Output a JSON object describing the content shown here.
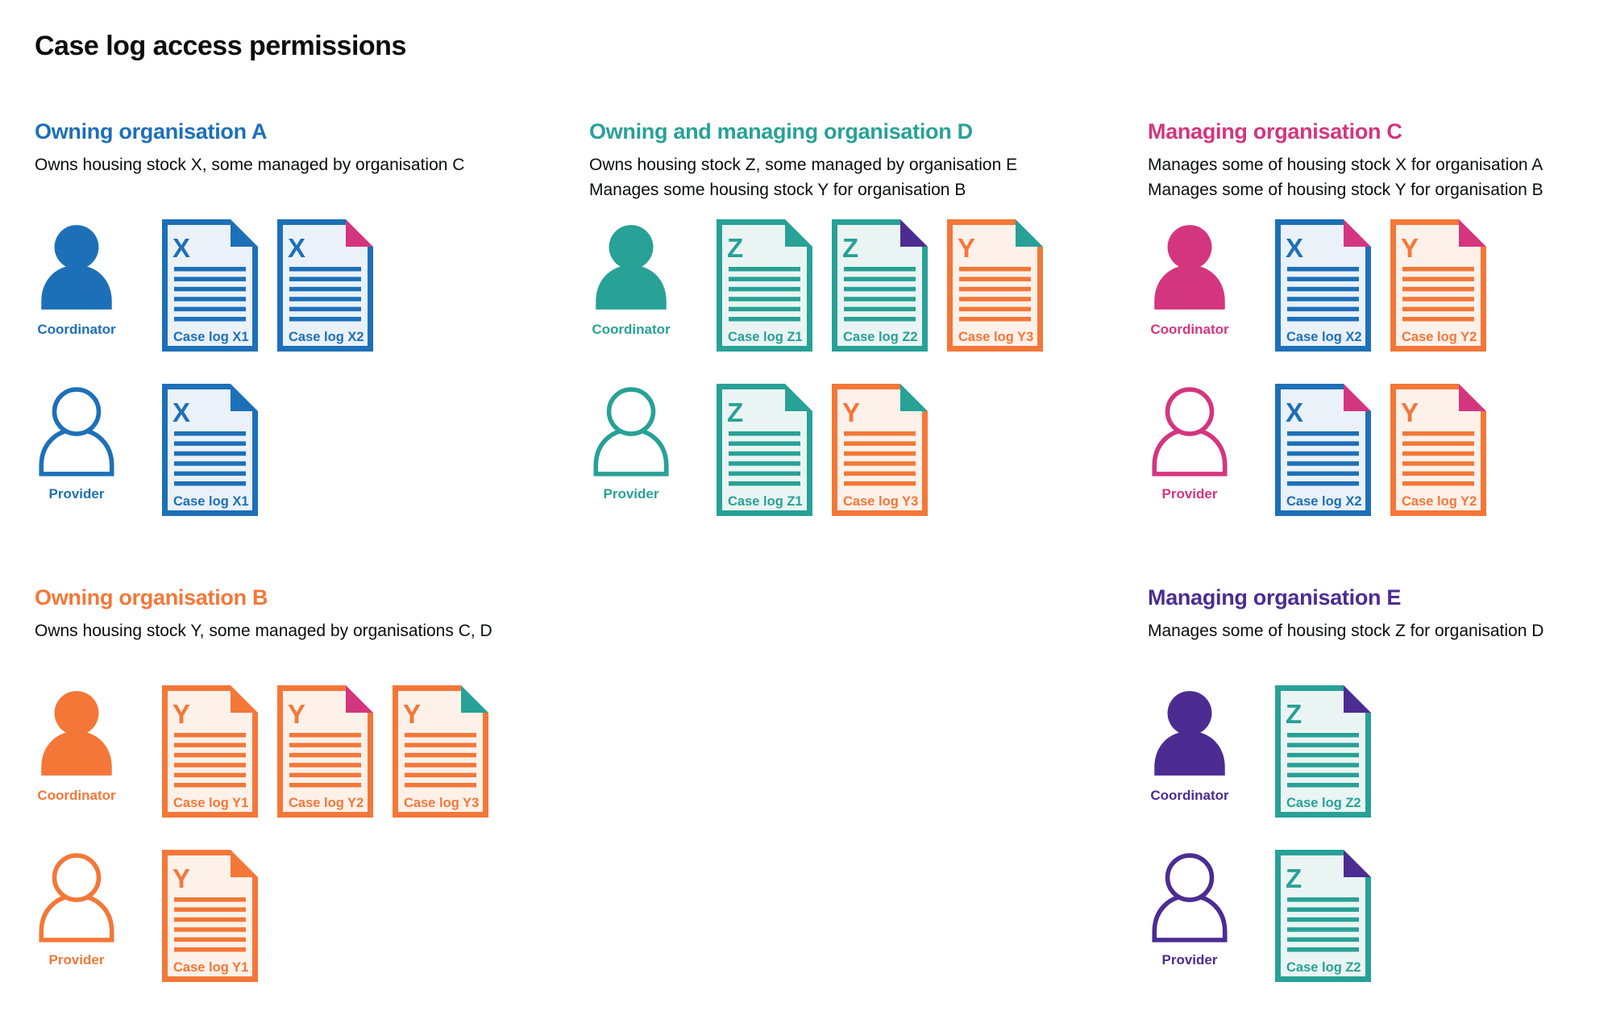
{
  "page": {
    "title": "Case log access permissions",
    "background": "#ffffff",
    "text_color": "#0b0c0c"
  },
  "palette": {
    "A": "#1d70b8",
    "B": "#f47738",
    "C": "#d4357f",
    "D": "#28a197",
    "E": "#4c2c92"
  },
  "stocks": {
    "X": {
      "color": "#1d70b8",
      "fill": "#eaf1f9",
      "owner": "A"
    },
    "Y": {
      "color": "#f47738",
      "fill": "#fdf1e9",
      "owner": "B"
    },
    "Z": {
      "color": "#28a197",
      "fill": "#eaf5f3",
      "owner": "D"
    }
  },
  "sections": [
    {
      "id": "org-a",
      "title": "Owning organisation A",
      "color_key": "A",
      "description": [
        "Owns housing stock X, some managed by organisation C"
      ],
      "grid": {
        "band": 1,
        "column": 1
      },
      "rows": [
        {
          "role": "Coordinator",
          "person": "filled",
          "docs": [
            {
              "stock": "X",
              "label": "Case log X1",
              "fold_org": "A"
            },
            {
              "stock": "X",
              "label": "Case log X2",
              "fold_org": "C"
            }
          ]
        },
        {
          "role": "Provider",
          "person": "outline",
          "docs": [
            {
              "stock": "X",
              "label": "Case log X1",
              "fold_org": "A"
            }
          ]
        }
      ]
    },
    {
      "id": "org-d",
      "title": "Owning and managing organisation D",
      "color_key": "D",
      "description": [
        "Owns housing stock Z, some managed by organisation E",
        "Manages some housing stock Y for organisation B"
      ],
      "grid": {
        "band": 1,
        "column": 2
      },
      "rows": [
        {
          "role": "Coordinator",
          "person": "filled",
          "docs": [
            {
              "stock": "Z",
              "label": "Case log Z1",
              "fold_org": "D"
            },
            {
              "stock": "Z",
              "label": "Case log Z2",
              "fold_org": "E"
            },
            {
              "stock": "Y",
              "label": "Case log Y3",
              "fold_org": "D"
            }
          ]
        },
        {
          "role": "Provider",
          "person": "outline",
          "docs": [
            {
              "stock": "Z",
              "label": "Case log Z1",
              "fold_org": "D"
            },
            {
              "stock": "Y",
              "label": "Case log Y3",
              "fold_org": "D"
            }
          ]
        }
      ]
    },
    {
      "id": "org-c",
      "title": "Managing organisation C",
      "color_key": "C",
      "description": [
        "Manages some of housing stock X for organisation A",
        "Manages some of housing stock Y for organisation B"
      ],
      "grid": {
        "band": 1,
        "column": 3
      },
      "rows": [
        {
          "role": "Coordinator",
          "person": "filled",
          "docs": [
            {
              "stock": "X",
              "label": "Case log X2",
              "fold_org": "C"
            },
            {
              "stock": "Y",
              "label": "Case log Y2",
              "fold_org": "C"
            }
          ]
        },
        {
          "role": "Provider",
          "person": "outline",
          "docs": [
            {
              "stock": "X",
              "label": "Case log X2",
              "fold_org": "C"
            },
            {
              "stock": "Y",
              "label": "Case log Y2",
              "fold_org": "C"
            }
          ]
        }
      ]
    },
    {
      "id": "org-b",
      "title": "Owning organisation B",
      "color_key": "B",
      "description": [
        "Owns housing stock Y, some managed by organisations C, D"
      ],
      "grid": {
        "band": 2,
        "column": 1
      },
      "rows": [
        {
          "role": "Coordinator",
          "person": "filled",
          "docs": [
            {
              "stock": "Y",
              "label": "Case log Y1",
              "fold_org": "B"
            },
            {
              "stock": "Y",
              "label": "Case log Y2",
              "fold_org": "C"
            },
            {
              "stock": "Y",
              "label": "Case log Y3",
              "fold_org": "D"
            }
          ]
        },
        {
          "role": "Provider",
          "person": "outline",
          "docs": [
            {
              "stock": "Y",
              "label": "Case log Y1",
              "fold_org": "B"
            }
          ]
        }
      ]
    },
    {
      "id": "org-e",
      "title": "Managing organisation E",
      "color_key": "E",
      "description": [
        "Manages some of housing stock Z for organisation D"
      ],
      "grid": {
        "band": 2,
        "column": 3
      },
      "rows": [
        {
          "role": "Coordinator",
          "person": "filled",
          "docs": [
            {
              "stock": "Z",
              "label": "Case log Z2",
              "fold_org": "E"
            }
          ]
        },
        {
          "role": "Provider",
          "person": "outline",
          "docs": [
            {
              "stock": "Z",
              "label": "Case log Z2",
              "fold_org": "E"
            }
          ]
        }
      ]
    }
  ]
}
